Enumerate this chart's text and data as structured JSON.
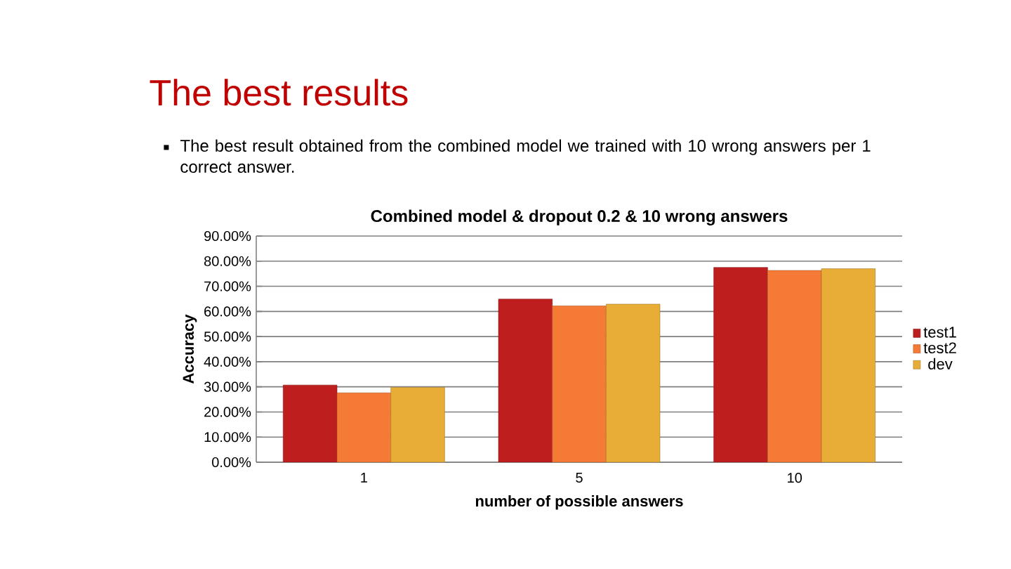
{
  "chart_data": {
    "type": "bar",
    "title": "Combined model & dropout 0.2 & 10 wrong answers",
    "annotations": [
      "The best results",
      "The best result obtained from the combined model we trained with 10 wrong answers per 1 correct answer."
    ],
    "xlabel": "number of possible answers",
    "ylabel": "Accuracy",
    "categories": [
      "1",
      "5",
      "10"
    ],
    "series": [
      {
        "name": "test1",
        "color": "#be1e1e",
        "values": [
          30.7,
          64.9,
          77.5
        ]
      },
      {
        "name": "test2",
        "color": "#f47a35",
        "values": [
          27.6,
          62.2,
          76.3
        ]
      },
      {
        "name": "dev",
        "color": "#e8ad37",
        "values": [
          29.8,
          62.9,
          77.0
        ]
      }
    ],
    "ylim": [
      0,
      90
    ],
    "yticks": [
      {
        "value": 0,
        "label": "0.00%"
      },
      {
        "value": 10,
        "label": "10.00%"
      },
      {
        "value": 20,
        "label": "20.00%"
      },
      {
        "value": 30,
        "label": "30.00%"
      },
      {
        "value": 40,
        "label": "40.00%"
      },
      {
        "value": 50,
        "label": "50.00%"
      },
      {
        "value": 60,
        "label": "60.00%"
      },
      {
        "value": 70,
        "label": "70.00%"
      },
      {
        "value": 80,
        "label": "80.00%"
      },
      {
        "value": 90,
        "label": "90.00%"
      }
    ],
    "grid": "y",
    "legend": "right"
  }
}
